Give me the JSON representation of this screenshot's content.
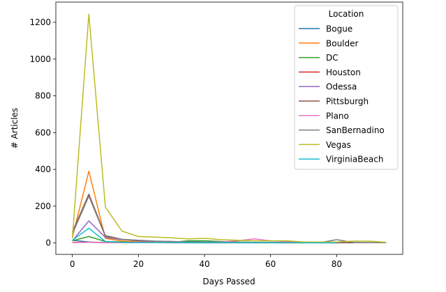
{
  "chart_data": {
    "type": "line",
    "xlabel": "Days Passed",
    "ylabel": "# Articles",
    "xlim": [
      -5,
      100
    ],
    "ylim": [
      -62,
      1310
    ],
    "xticks": [
      0,
      20,
      40,
      60,
      80
    ],
    "yticks": [
      0,
      200,
      400,
      600,
      800,
      1000,
      1200
    ],
    "legend_title": "Location",
    "legend_position": "top-right",
    "grid": false,
    "series": [
      {
        "name": "Bogue",
        "color": "#1f77b4",
        "x": [
          0,
          5,
          10,
          15,
          20,
          25,
          30,
          35,
          40,
          45,
          50,
          55,
          60,
          65,
          70,
          75,
          80,
          85
        ],
        "y": [
          15,
          5,
          2,
          3,
          2,
          4,
          3,
          8,
          6,
          5,
          4,
          3,
          3,
          2,
          2,
          2,
          1,
          1
        ]
      },
      {
        "name": "Boulder",
        "color": "#ff7f0e",
        "x": [
          0,
          5,
          10,
          15,
          20,
          25,
          30,
          35,
          40,
          45,
          50,
          55,
          60,
          65,
          70
        ],
        "y": [
          30,
          390,
          25,
          10,
          8,
          5,
          5,
          4,
          3,
          3,
          2,
          2,
          2,
          1,
          1
        ]
      },
      {
        "name": "DC",
        "color": "#2ca02c",
        "x": [
          0,
          5,
          10,
          15,
          20,
          25,
          30,
          35,
          40,
          45,
          50,
          55,
          60,
          65,
          70,
          75,
          80
        ],
        "y": [
          12,
          35,
          8,
          5,
          4,
          3,
          3,
          12,
          12,
          8,
          5,
          4,
          4,
          3,
          2,
          2,
          2
        ]
      },
      {
        "name": "Houston",
        "color": "#d62728",
        "x": [
          0,
          5,
          10,
          15,
          20,
          25,
          30,
          35,
          40,
          45,
          50,
          55,
          60,
          65,
          70,
          75,
          80
        ],
        "y": [
          3,
          4,
          2,
          2,
          2,
          2,
          1,
          1,
          1,
          1,
          1,
          1,
          1,
          1,
          1,
          1,
          1
        ]
      },
      {
        "name": "Odessa",
        "color": "#9467bd",
        "x": [
          0,
          5,
          10,
          15,
          20,
          25,
          30,
          35,
          40,
          45,
          50,
          55,
          60,
          65,
          70,
          75,
          80
        ],
        "y": [
          12,
          120,
          30,
          18,
          15,
          10,
          8,
          5,
          4,
          3,
          3,
          2,
          2,
          2,
          2,
          1,
          1
        ]
      },
      {
        "name": "Pittsburgh",
        "color": "#8c564b",
        "x": [
          0,
          5,
          10,
          15,
          20,
          25,
          30,
          35,
          40,
          45,
          50,
          55,
          60,
          65,
          70,
          75,
          80,
          85,
          90,
          95
        ],
        "y": [
          60,
          265,
          40,
          20,
          12,
          8,
          6,
          5,
          4,
          3,
          3,
          3,
          3,
          2,
          2,
          2,
          2,
          2,
          2,
          2
        ]
      },
      {
        "name": "Plano",
        "color": "#e377c2",
        "x": [
          0,
          5,
          10,
          15,
          20,
          25,
          30,
          35,
          40,
          45,
          50,
          55,
          60,
          65,
          70,
          75,
          80
        ],
        "y": [
          2,
          3,
          2,
          2,
          5,
          4,
          3,
          3,
          5,
          6,
          12,
          22,
          12,
          8,
          4,
          3,
          2
        ]
      },
      {
        "name": "SanBernadino",
        "color": "#7f7f7f",
        "x": [
          0,
          5,
          10,
          15,
          20,
          25,
          30,
          35,
          40,
          45,
          50,
          55,
          60,
          65,
          70,
          75,
          80,
          85,
          90,
          95
        ],
        "y": [
          50,
          255,
          35,
          20,
          15,
          10,
          8,
          6,
          5,
          4,
          4,
          3,
          3,
          3,
          2,
          2,
          18,
          3,
          2,
          2
        ]
      },
      {
        "name": "Vegas",
        "color": "#bcbd22",
        "x": [
          0,
          5,
          10,
          15,
          20,
          25,
          30,
          35,
          40,
          45,
          50,
          55,
          60,
          65,
          70,
          75,
          80,
          85,
          90,
          95
        ],
        "y": [
          25,
          1245,
          195,
          65,
          35,
          32,
          28,
          22,
          25,
          18,
          15,
          12,
          12,
          12,
          5,
          5,
          5,
          10,
          10,
          3
        ]
      },
      {
        "name": "VirginiaBeach",
        "color": "#17becf",
        "x": [
          0,
          5,
          10,
          15,
          20,
          25,
          30,
          35,
          40,
          45,
          50,
          55,
          60,
          65,
          70,
          75,
          80
        ],
        "y": [
          15,
          80,
          8,
          3,
          2,
          2,
          2,
          1,
          1,
          1,
          1,
          1,
          1,
          1,
          1,
          1,
          1
        ]
      }
    ]
  }
}
